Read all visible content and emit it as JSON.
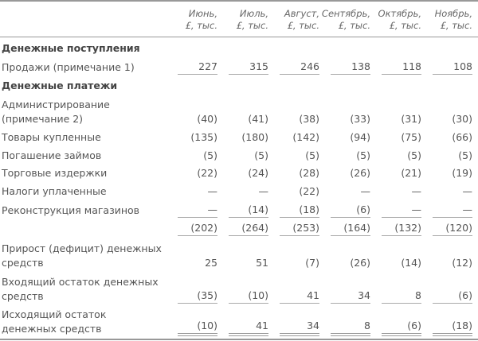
{
  "columns": [
    {
      "month": "Июнь,",
      "unit": "£, тыс."
    },
    {
      "month": "Июль,",
      "unit": "£, тыс."
    },
    {
      "month": "Август,",
      "unit": "£, тыс."
    },
    {
      "month": "Сентябрь,",
      "unit": "£, тыс."
    },
    {
      "month": "Октябрь,",
      "unit": "£, тыс."
    },
    {
      "month": "Ноябрь,",
      "unit": "£, тыс."
    }
  ],
  "rows": [
    {
      "label": "Денежные поступления",
      "section": true,
      "values": []
    },
    {
      "label": "Продажи (примечание 1)",
      "values": [
        "227",
        "315",
        "246",
        "138",
        "118",
        "108"
      ],
      "underline": "single"
    },
    {
      "label": "Денежные платежи",
      "section": true,
      "values": []
    },
    {
      "label": "Администрирование\n(примечание 2)",
      "values": [
        "(40)",
        "(41)",
        "(38)",
        "(33)",
        "(31)",
        "(30)"
      ]
    },
    {
      "label": "Товары купленные",
      "values": [
        "(135)",
        "(180)",
        "(142)",
        "(94)",
        "(75)",
        "(66)"
      ]
    },
    {
      "label": "Погашение займов",
      "values": [
        "(5)",
        "(5)",
        "(5)",
        "(5)",
        "(5)",
        "(5)"
      ]
    },
    {
      "label": "Торговые издержки",
      "values": [
        "(22)",
        "(24)",
        "(28)",
        "(26)",
        "(21)",
        "(19)"
      ]
    },
    {
      "label": "Налоги уплаченные",
      "values": [
        "—",
        "—",
        "(22)",
        "—",
        "—",
        "—"
      ]
    },
    {
      "label": "Реконструкция магазинов",
      "values": [
        "—",
        "(14)",
        "(18)",
        "(6)",
        "—",
        "—"
      ],
      "underline": "single"
    },
    {
      "label": "",
      "values": [
        "(202)",
        "(264)",
        "(253)",
        "(164)",
        "(132)",
        "(120)"
      ],
      "underline": "single"
    },
    {
      "label": "Прирост (дефицит) денежных\nсредств",
      "values": [
        "25",
        "51",
        "(7)",
        "(26)",
        "(14)",
        "(12)"
      ]
    },
    {
      "label": "Входящий остаток денежных\nсредств",
      "values": [
        "(35)",
        "(10)",
        "41",
        "34",
        "8",
        "(6)"
      ],
      "underline": "single"
    },
    {
      "label": "Исходящий остаток\nденежных средств",
      "values": [
        "(10)",
        "41",
        "34",
        "8",
        "(6)",
        "(18)"
      ],
      "underline": "double"
    }
  ]
}
